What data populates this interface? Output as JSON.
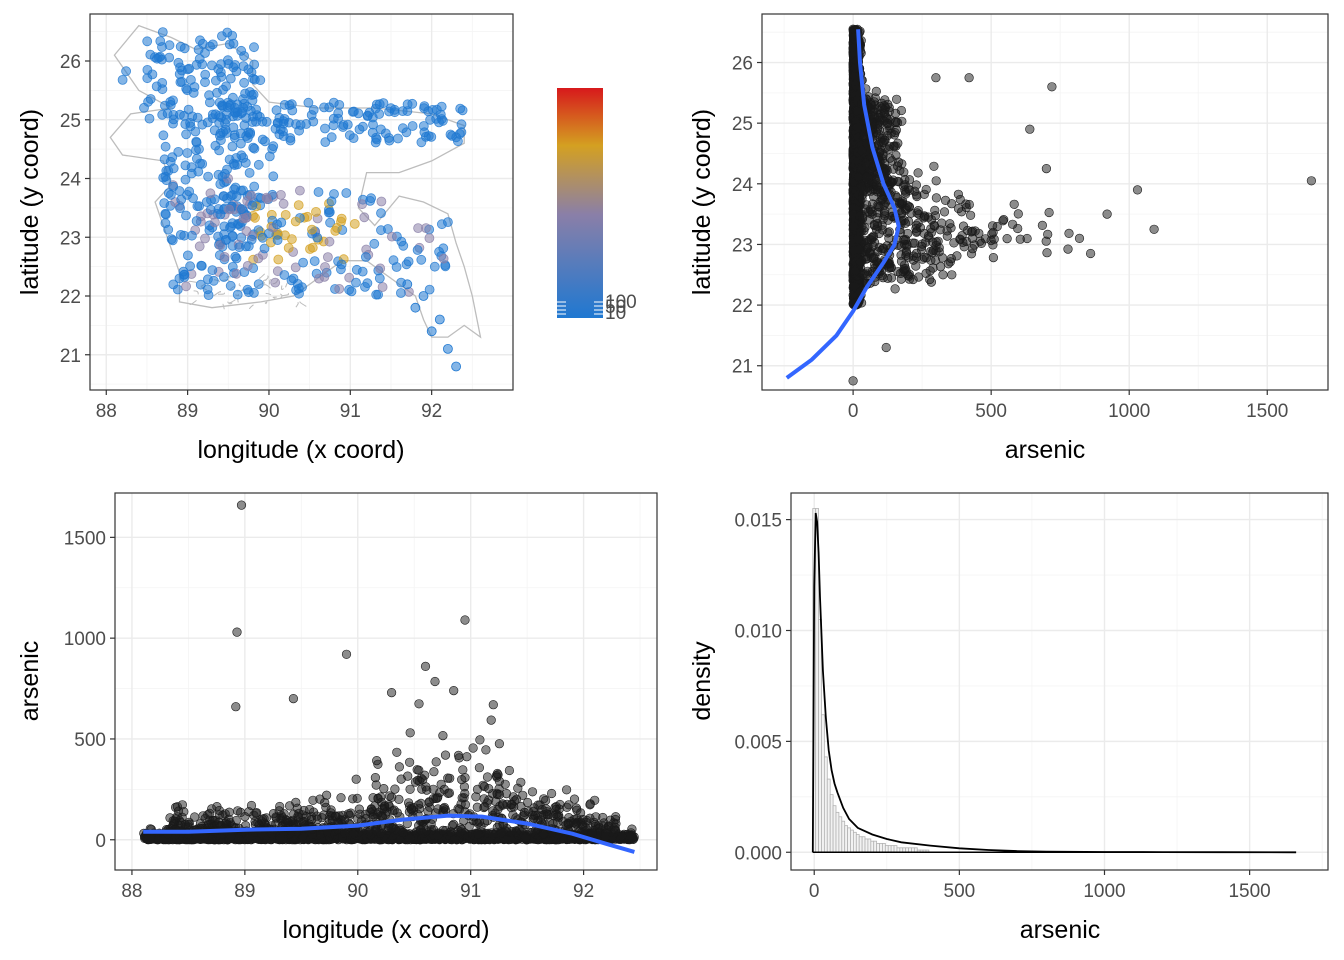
{
  "palette": {
    "point_dark": "#1a1a1a",
    "smooth_line": "#3366ff",
    "map_outline": "#bdbdbd",
    "gradient_low": "#1f78d1",
    "gradient_mid": "#8a7fa8",
    "gradient_upper": "#d4a021",
    "gradient_high": "#d7191c"
  },
  "chart_data": [
    {
      "id": "map",
      "type": "scatter",
      "title": "",
      "xlabel": "longitude (x coord)",
      "ylabel": "latitude (y coord)",
      "xlim": [
        87.8,
        93.0
      ],
      "ylim": [
        20.4,
        26.8
      ],
      "xticks": [
        88,
        89,
        90,
        91,
        92
      ],
      "yticks": [
        21,
        22,
        23,
        24,
        25,
        26
      ],
      "grid": true,
      "legend": {
        "type": "colorbar",
        "placement": "right",
        "title": "",
        "labels": [
          "10",
          "50",
          "100"
        ]
      },
      "description_points": "Well locations across Bangladesh coloured by arsenic level, overlaid on a grey country outline; high values concentrated around longitude 89.5–91, latitude 22.5–23.5."
    },
    {
      "id": "lat-vs-arsenic",
      "type": "scatter",
      "title": "",
      "xlabel": "arsenic",
      "ylabel": "latitude (y coord)",
      "xlim": [
        -330,
        1720
      ],
      "ylim": [
        20.6,
        26.8
      ],
      "xticks": [
        0,
        500,
        1000,
        1500
      ],
      "yticks": [
        21,
        22,
        23,
        24,
        25,
        26
      ],
      "grid": true,
      "outliers": [
        {
          "x": 1660,
          "y": 24.05
        },
        {
          "x": 1090,
          "y": 23.25
        },
        {
          "x": 1030,
          "y": 23.9
        },
        {
          "x": 920,
          "y": 23.5
        },
        {
          "x": 860,
          "y": 22.85
        },
        {
          "x": 820,
          "y": 23.1
        },
        {
          "x": 720,
          "y": 25.6
        },
        {
          "x": 700,
          "y": 24.25
        },
        {
          "x": 640,
          "y": 24.9
        },
        {
          "x": 420,
          "y": 25.75
        },
        {
          "x": 300,
          "y": 25.75
        },
        {
          "x": 120,
          "y": 21.3
        },
        {
          "x": 0,
          "y": 20.75
        },
        {
          "x": 0,
          "y": 26.55
        }
      ],
      "smooth": {
        "x": [
          -240,
          -150,
          -60,
          0,
          50,
          110,
          150,
          165,
          150,
          110,
          70,
          40,
          25,
          18
        ],
        "y": [
          20.8,
          21.1,
          21.5,
          21.9,
          22.3,
          22.7,
          23.0,
          23.3,
          23.6,
          24.0,
          24.6,
          25.3,
          26.0,
          26.55
        ]
      }
    },
    {
      "id": "arsenic-vs-long",
      "type": "scatter",
      "title": "",
      "xlabel": "longitude (x coord)",
      "ylabel": "arsenic",
      "xlim": [
        87.85,
        92.65
      ],
      "ylim": [
        -150,
        1720
      ],
      "xticks": [
        88,
        89,
        90,
        91,
        92
      ],
      "yticks": [
        0,
        500,
        1000,
        1500
      ],
      "grid": true,
      "outliers": [
        {
          "x": 88.97,
          "y": 1660
        },
        {
          "x": 90.95,
          "y": 1090
        },
        {
          "x": 88.93,
          "y": 1030
        },
        {
          "x": 89.9,
          "y": 920
        },
        {
          "x": 90.6,
          "y": 860
        },
        {
          "x": 89.43,
          "y": 700
        },
        {
          "x": 88.92,
          "y": 660
        },
        {
          "x": 90.3,
          "y": 730
        },
        {
          "x": 90.85,
          "y": 740
        },
        {
          "x": 91.2,
          "y": 670
        }
      ],
      "smooth": {
        "x": [
          88.1,
          88.5,
          89.0,
          89.5,
          90.0,
          90.4,
          90.8,
          91.1,
          91.5,
          91.9,
          92.2,
          92.45
        ],
        "y": [
          40,
          40,
          50,
          55,
          70,
          100,
          120,
          115,
          80,
          30,
          -20,
          -60
        ]
      }
    },
    {
      "id": "density",
      "type": "area",
      "title": "",
      "xlabel": "arsenic",
      "ylabel": "density",
      "xlim": [
        -80,
        1770
      ],
      "ylim": [
        -0.0008,
        0.0162
      ],
      "xticks": [
        0,
        500,
        1000,
        1500
      ],
      "ytick_labels": [
        "0.000",
        "0.005",
        "0.010",
        "0.015"
      ],
      "yticks": [
        0,
        0.005,
        0.01,
        0.015
      ],
      "grid": true,
      "histogram": {
        "bin_width": 10,
        "heights": [
          0.0155,
          0.0155,
          0.0105,
          0.0062,
          0.0043,
          0.0033,
          0.0026,
          0.0021,
          0.0018,
          0.0016,
          0.0014,
          0.0012,
          0.0011,
          0.001,
          0.0009,
          0.0008,
          0.0007,
          0.0007,
          0.0006,
          0.0006,
          0.0005,
          0.0005,
          0.0004,
          0.0004,
          0.0004,
          0.0003,
          0.0003,
          0.0003,
          0.0003,
          0.0002,
          0.0002,
          0.0002,
          0.0002,
          0.0002,
          0.0002,
          0.0002,
          0.0001,
          0.0001,
          0.0001,
          0.0001
        ]
      },
      "density_curve": {
        "x": [
          -5,
          0,
          5,
          10,
          15,
          20,
          25,
          30,
          40,
          50,
          60,
          70,
          80,
          100,
          120,
          150,
          200,
          250,
          300,
          400,
          500,
          600,
          700,
          800,
          1000,
          1200,
          1400,
          1660
        ],
        "y": [
          0.0,
          0.012,
          0.0153,
          0.0149,
          0.0135,
          0.0115,
          0.0098,
          0.0082,
          0.0061,
          0.0046,
          0.0037,
          0.0031,
          0.0027,
          0.002,
          0.0015,
          0.0011,
          0.0008,
          0.0006,
          0.00045,
          0.0003,
          0.00018,
          0.0001,
          5e-05,
          3e-05,
          1e-05,
          5e-06,
          2e-06,
          0.0
        ]
      }
    }
  ]
}
